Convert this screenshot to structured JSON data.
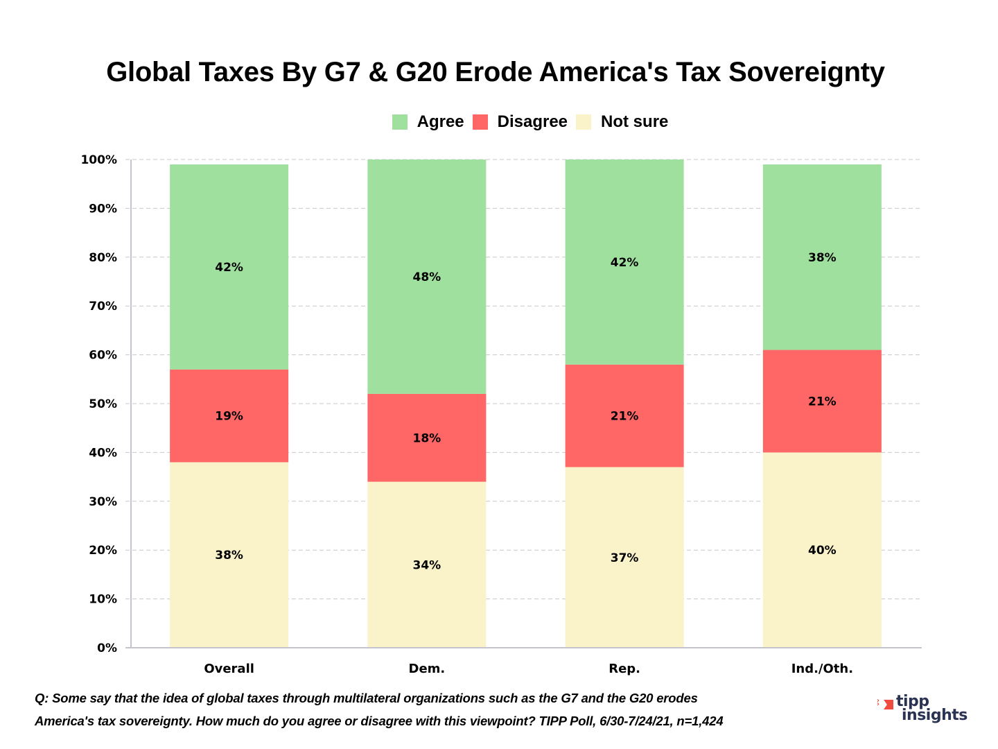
{
  "chart_data": {
    "type": "bar",
    "stacked": true,
    "title": "Global Taxes By G7 & G20 Erode America's Tax Sovereignty",
    "xlabel": "",
    "ylabel": "",
    "ylim": [
      0,
      100
    ],
    "yticks": [
      "0%",
      "10%",
      "20%",
      "30%",
      "40%",
      "50%",
      "60%",
      "70%",
      "80%",
      "90%",
      "100%"
    ],
    "grid": true,
    "legend_position": "top-center",
    "categories": [
      "Overall",
      "Dem.",
      "Rep.",
      "Ind./Oth."
    ],
    "series": [
      {
        "name": "Not sure",
        "color": "#faf2c8",
        "values": [
          38,
          34,
          37,
          40
        ]
      },
      {
        "name": "Disagree",
        "color": "#ff6666",
        "values": [
          19,
          18,
          21,
          21
        ]
      },
      {
        "name": "Agree",
        "color": "#a0e09e",
        "values": [
          42,
          48,
          42,
          38
        ]
      }
    ],
    "legend": [
      {
        "name": "Agree",
        "color": "#a0e09e"
      },
      {
        "name": "Disagree",
        "color": "#ff6666"
      },
      {
        "name": "Not sure",
        "color": "#faf2c8"
      }
    ]
  },
  "footnote": {
    "line1": "Q:  Some say that the idea of global taxes through multilateral organizations such as the G7 and the G20 erodes",
    "line2": "America's tax sovereignty. How much do you agree or disagree with this viewpoint?  TIPP Poll, 6/30-7/24/21, n=1,424"
  },
  "logo": {
    "line1": "tipp",
    "line2": "insights"
  }
}
